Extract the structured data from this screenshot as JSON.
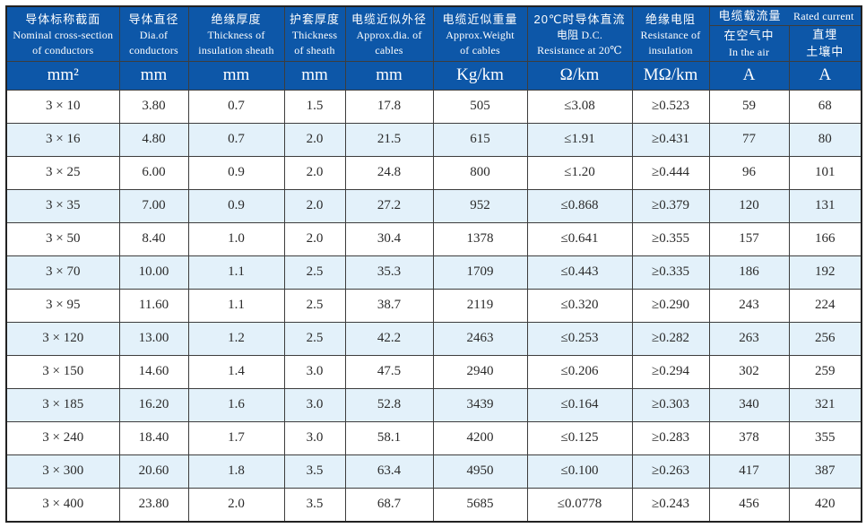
{
  "table": {
    "title": "cable-specification-table",
    "columns": [
      {
        "id": "cross-section",
        "lines": [
          "导体标称截面",
          "Nominal cross-section",
          "of conductors"
        ],
        "unit": "mm²"
      },
      {
        "id": "diameter",
        "lines": [
          "导体直径",
          "Dia.of",
          "conductors"
        ],
        "unit": "mm"
      },
      {
        "id": "insulation-thickness",
        "lines": [
          "绝缘厚度",
          "Thickness of",
          "insulation sheath"
        ],
        "unit": "mm"
      },
      {
        "id": "sheath-thickness",
        "lines": [
          "护套厚度",
          "Thickness",
          "of sheath"
        ],
        "unit": "mm"
      },
      {
        "id": "approx-diameter",
        "lines": [
          "电缆近似外径",
          "Approx.dia. of",
          "cables"
        ],
        "unit": "mm"
      },
      {
        "id": "approx-weight",
        "lines": [
          "电缆近似重量",
          "Approx.Weight",
          "of cables"
        ],
        "unit": "Kg/km"
      },
      {
        "id": "dc-resistance",
        "lines": [
          "20℃时导体直流",
          "电阻 D.C.",
          "Resistance at 20℃"
        ],
        "unit": "Ω/km"
      },
      {
        "id": "insulation-resistance",
        "lines": [
          "绝缘电阻",
          "Resistance of",
          "insulation"
        ],
        "unit": "MΩ/km"
      }
    ],
    "current_group": {
      "zh": "电缆载流量",
      "en": "Rated current"
    },
    "current_columns": [
      {
        "id": "current-in-air",
        "lines": [
          "在空气中",
          "In the air"
        ],
        "unit": "A"
      },
      {
        "id": "current-buried",
        "lines": [
          "直埋",
          "土壤中"
        ],
        "unit": "A"
      }
    ],
    "cell_names": [
      "cross-section",
      "diameter",
      "insulation-thickness",
      "sheath-thickness",
      "approx-diameter",
      "approx-weight",
      "dc-resistance",
      "insulation-resistance",
      "current-in-air",
      "current-buried"
    ],
    "rows": [
      [
        "3 × 10",
        "3.80",
        "0.7",
        "1.5",
        "17.8",
        "505",
        "≤3.08",
        "≥0.523",
        "59",
        "68"
      ],
      [
        "3 × 16",
        "4.80",
        "0.7",
        "2.0",
        "21.5",
        "615",
        "≤1.91",
        "≥0.431",
        "77",
        "80"
      ],
      [
        "3 × 25",
        "6.00",
        "0.9",
        "2.0",
        "24.8",
        "800",
        "≤1.20",
        "≥0.444",
        "96",
        "101"
      ],
      [
        "3 × 35",
        "7.00",
        "0.9",
        "2.0",
        "27.2",
        "952",
        "≤0.868",
        "≥0.379",
        "120",
        "131"
      ],
      [
        "3 × 50",
        "8.40",
        "1.0",
        "2.0",
        "30.4",
        "1378",
        "≤0.641",
        "≥0.355",
        "157",
        "166"
      ],
      [
        "3 × 70",
        "10.00",
        "1.1",
        "2.5",
        "35.3",
        "1709",
        "≤0.443",
        "≥0.335",
        "186",
        "192"
      ],
      [
        "3 × 95",
        "11.60",
        "1.1",
        "2.5",
        "38.7",
        "2119",
        "≤0.320",
        "≥0.290",
        "243",
        "224"
      ],
      [
        "3 × 120",
        "13.00",
        "1.2",
        "2.5",
        "42.2",
        "2463",
        "≤0.253",
        "≥0.282",
        "263",
        "256"
      ],
      [
        "3 × 150",
        "14.60",
        "1.4",
        "3.0",
        "47.5",
        "2940",
        "≤0.206",
        "≥0.294",
        "302",
        "259"
      ],
      [
        "3 × 185",
        "16.20",
        "1.6",
        "3.0",
        "52.8",
        "3439",
        "≤0.164",
        "≥0.303",
        "340",
        "321"
      ],
      [
        "3 × 240",
        "18.40",
        "1.7",
        "3.0",
        "58.1",
        "4200",
        "≤0.125",
        "≥0.283",
        "378",
        "355"
      ],
      [
        "3 × 300",
        "20.60",
        "1.8",
        "3.5",
        "63.4",
        "4950",
        "≤0.100",
        "≥0.263",
        "417",
        "387"
      ],
      [
        "3 × 400",
        "23.80",
        "2.0",
        "3.5",
        "68.7",
        "5685",
        "≤0.0778",
        "≥0.243",
        "456",
        "420"
      ]
    ]
  },
  "colors": {
    "header_bg": "#0d57a8",
    "header_text": "#ffffff",
    "row_alt_bg": "#e3f1fa",
    "row_bg": "#ffffff",
    "border": "#3d3d3d",
    "body_text": "#2a2a2a"
  }
}
